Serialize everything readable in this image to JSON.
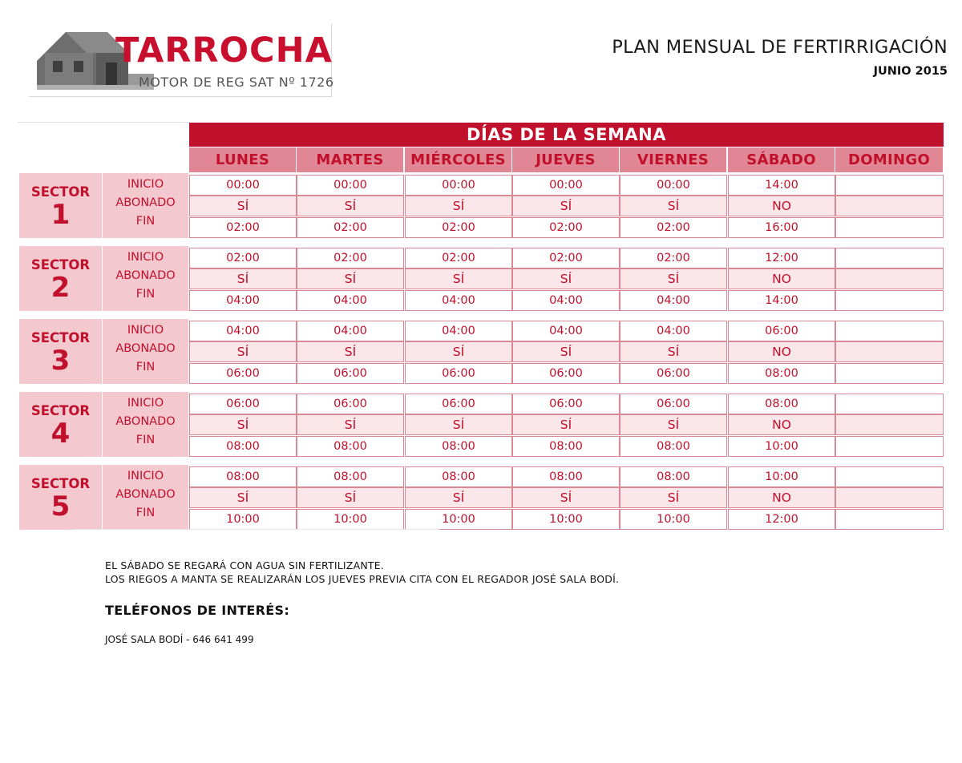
{
  "header": {
    "brand": "TARROCHA",
    "brand_subtitle": "MOTOR DE REG SAT Nº 1726",
    "title": "PLAN MENSUAL DE FERTIRRIGACIÓN",
    "month": "JUNIO 2015"
  },
  "table": {
    "week_title": "DÍAS DE LA SEMANA",
    "days": [
      "LUNES",
      "MARTES",
      "MIÉRCOLES",
      "JUEVES",
      "VIERNES",
      "SÁBADO",
      "DOMINGO"
    ],
    "row_labels": [
      "INICIO",
      "ABONADO",
      "FIN"
    ],
    "sector_word": "SECTOR",
    "sectors": [
      {
        "number": "1",
        "inicio": [
          "00:00",
          "00:00",
          "00:00",
          "00:00",
          "00:00",
          "14:00",
          ""
        ],
        "abonado": [
          "SÍ",
          "SÍ",
          "SÍ",
          "SÍ",
          "SÍ",
          "NO",
          ""
        ],
        "fin": [
          "02:00",
          "02:00",
          "02:00",
          "02:00",
          "02:00",
          "16:00",
          ""
        ]
      },
      {
        "number": "2",
        "inicio": [
          "02:00",
          "02:00",
          "02:00",
          "02:00",
          "02:00",
          "12:00",
          ""
        ],
        "abonado": [
          "SÍ",
          "SÍ",
          "SÍ",
          "SÍ",
          "SÍ",
          "NO",
          ""
        ],
        "fin": [
          "04:00",
          "04:00",
          "04:00",
          "04:00",
          "04:00",
          "14:00",
          ""
        ]
      },
      {
        "number": "3",
        "inicio": [
          "04:00",
          "04:00",
          "04:00",
          "04:00",
          "04:00",
          "06:00",
          ""
        ],
        "abonado": [
          "SÍ",
          "SÍ",
          "SÍ",
          "SÍ",
          "SÍ",
          "NO",
          ""
        ],
        "fin": [
          "06:00",
          "06:00",
          "06:00",
          "06:00",
          "06:00",
          "08:00",
          ""
        ]
      },
      {
        "number": "4",
        "inicio": [
          "06:00",
          "06:00",
          "06:00",
          "06:00",
          "06:00",
          "08:00",
          ""
        ],
        "abonado": [
          "SÍ",
          "SÍ",
          "SÍ",
          "SÍ",
          "SÍ",
          "NO",
          ""
        ],
        "fin": [
          "08:00",
          "08:00",
          "08:00",
          "08:00",
          "08:00",
          "10:00",
          ""
        ]
      },
      {
        "number": "5",
        "inicio": [
          "08:00",
          "08:00",
          "08:00",
          "08:00",
          "08:00",
          "10:00",
          ""
        ],
        "abonado": [
          "SÍ",
          "SÍ",
          "SÍ",
          "SÍ",
          "SÍ",
          "NO",
          ""
        ],
        "fin": [
          "10:00",
          "10:00",
          "10:00",
          "10:00",
          "10:00",
          "12:00",
          ""
        ]
      }
    ]
  },
  "notes": [
    "EL SÁBADO SE REGARÁ CON AGUA SIN FERTILIZANTE.",
    "LOS RIEGOS A MANTA SE REALIZARÁN LOS JUEVES PREVIA CITA CON EL REGADOR JOSÉ SALA BODÍ."
  ],
  "phones": {
    "title": "TELÉFONOS DE INTERÉS:",
    "entries": [
      "JOSÉ SALA BODÍ - 646 641 499"
    ]
  },
  "colors": {
    "accent": "#c0102c",
    "header_pink": "#e08694",
    "label_pink": "#f4c8cf",
    "row_pink": "#fbe6ea"
  }
}
